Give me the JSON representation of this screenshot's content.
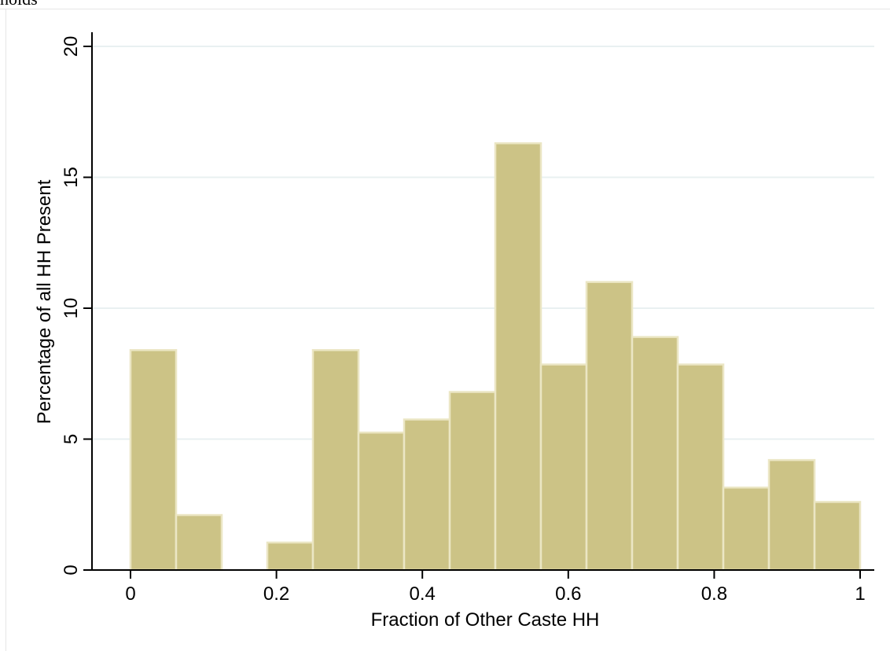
{
  "header": {
    "caption": "holds"
  },
  "chart_data": {
    "type": "bar",
    "bin_edges": [
      0,
      0.0625,
      0.125,
      0.1875,
      0.25,
      0.3125,
      0.375,
      0.4375,
      0.5,
      0.5625,
      0.625,
      0.6875,
      0.75,
      0.8125,
      0.875,
      0.9375,
      1.0
    ],
    "values": [
      8.4,
      2.1,
      0,
      1.05,
      8.4,
      5.25,
      5.75,
      6.8,
      16.3,
      7.85,
      11.0,
      8.9,
      7.85,
      3.15,
      4.2,
      2.6
    ],
    "xlabel": "Fraction of Other Caste HH",
    "ylabel": "Percentage of all HH Present",
    "xlim": [
      0,
      1
    ],
    "ylim": [
      0,
      20
    ],
    "x_ticks": [
      0,
      0.2,
      0.4,
      0.6,
      0.8,
      1
    ],
    "x_tick_labels": [
      "0",
      "0.2",
      "0.4",
      "0.6",
      "0.8",
      "1"
    ],
    "y_ticks": [
      0,
      5,
      10,
      15,
      20
    ],
    "y_tick_labels": [
      "0",
      "5",
      "10",
      "15",
      "20"
    ],
    "grid": "horizontal",
    "colors": {
      "bar_fill": "#ccc386",
      "bar_outline": "#ebe6c4",
      "grid": "#e9f0f1",
      "axis": "#000000"
    }
  }
}
